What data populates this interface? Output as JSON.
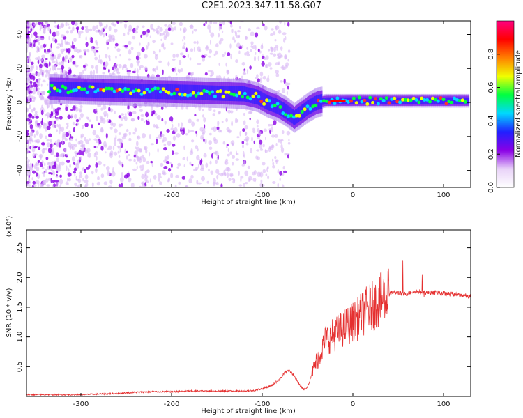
{
  "title": "C2E1.2023.347.11.58.G07",
  "chart_data": [
    {
      "type": "heatmap",
      "xlabel": "Height of straight line (km)",
      "ylabel": "Frequency (Hz)",
      "xlim": [
        -360,
        130
      ],
      "ylim": [
        -50,
        48
      ],
      "xticks": [
        -300,
        -200,
        -100,
        0,
        100
      ],
      "xtick_labels": [
        "-300",
        "-200",
        "-100",
        "0",
        "100"
      ],
      "yticks": [
        -40,
        -20,
        0,
        20,
        40
      ],
      "ytick_labels": [
        "-40",
        "-20",
        "0",
        "20",
        "40"
      ],
      "colorbar": {
        "label": "Normalized spectral amplitude",
        "range": [
          0,
          1
        ],
        "ticks": [
          0.0,
          0.2,
          0.4,
          0.6,
          0.8
        ],
        "tick_labels": [
          "0.0",
          "0.2",
          "0.4",
          "0.6",
          "0.8"
        ],
        "colors": [
          "#ffffff",
          "#e8d2f8",
          "#8a00e6",
          "#2020ff",
          "#00d8ff",
          "#00ff40",
          "#f0ff00",
          "#ff8000",
          "#ff0000",
          "#ff0080"
        ]
      },
      "ridge": [
        {
          "x": -330,
          "y": 8
        },
        {
          "x": -300,
          "y": 7.5
        },
        {
          "x": -260,
          "y": 7
        },
        {
          "x": -220,
          "y": 6.5
        },
        {
          "x": -180,
          "y": 6
        },
        {
          "x": -150,
          "y": 5.5
        },
        {
          "x": -120,
          "y": 5
        },
        {
          "x": -105,
          "y": 3
        },
        {
          "x": -95,
          "y": 0
        },
        {
          "x": -85,
          "y": -2
        },
        {
          "x": -75,
          "y": -5
        },
        {
          "x": -65,
          "y": -9
        },
        {
          "x": -60,
          "y": -7
        },
        {
          "x": -50,
          "y": -3
        },
        {
          "x": -40,
          "y": 0
        },
        {
          "x": -30,
          "y": 1
        },
        {
          "x": 0,
          "y": 1
        },
        {
          "x": 50,
          "y": 1
        },
        {
          "x": 100,
          "y": 1
        },
        {
          "x": 128,
          "y": 1
        }
      ]
    },
    {
      "type": "line",
      "xlabel": "Height of straight line (km)",
      "ylabel": "SNR (10 * v/v)",
      "multiplier": "(x10⁴)",
      "xlim": [
        -360,
        130
      ],
      "ylim": [
        0,
        2.8
      ],
      "xticks": [
        -300,
        -200,
        -100,
        0,
        100
      ],
      "xtick_labels": [
        "-300",
        "-200",
        "-100",
        "0",
        "100"
      ],
      "yticks": [
        0.5,
        1.0,
        1.5,
        2.0,
        2.5
      ],
      "ytick_labels": [
        "0.5",
        "1.0",
        "1.5",
        "2.0",
        "2.5"
      ],
      "color": "#e53030",
      "series": [
        {
          "x": [
            -360,
            -340,
            -320,
            -300,
            -280,
            -260,
            -240,
            -220,
            -200,
            -180,
            -160,
            -140,
            -120,
            -110,
            -100,
            -90,
            -80,
            -75,
            -70,
            -65,
            -60,
            -55,
            -50,
            -45,
            -40,
            -35,
            -30,
            -25,
            -20,
            -15,
            -10,
            -5,
            0,
            5,
            10,
            15,
            20,
            25,
            30,
            35,
            40,
            45,
            50,
            55,
            60,
            65,
            70,
            75,
            80,
            85,
            90,
            95,
            100,
            105,
            110,
            115,
            120,
            125,
            130
          ],
          "y": [
            0.03,
            0.03,
            0.03,
            0.03,
            0.04,
            0.05,
            0.07,
            0.08,
            0.08,
            0.09,
            0.09,
            0.09,
            0.09,
            0.1,
            0.13,
            0.18,
            0.3,
            0.4,
            0.45,
            0.35,
            0.22,
            0.12,
            0.15,
            0.4,
            0.6,
            0.75,
            0.95,
            1.0,
            1.05,
            1.1,
            1.15,
            1.2,
            1.25,
            1.3,
            1.38,
            1.45,
            1.5,
            1.55,
            1.62,
            1.68,
            1.72,
            1.75,
            1.75,
            1.72,
            1.73,
            1.76,
            1.76,
            1.76,
            1.75,
            1.74,
            1.75,
            1.74,
            1.73,
            1.72,
            1.72,
            1.71,
            1.7,
            1.69,
            1.68
          ]
        }
      ]
    }
  ]
}
